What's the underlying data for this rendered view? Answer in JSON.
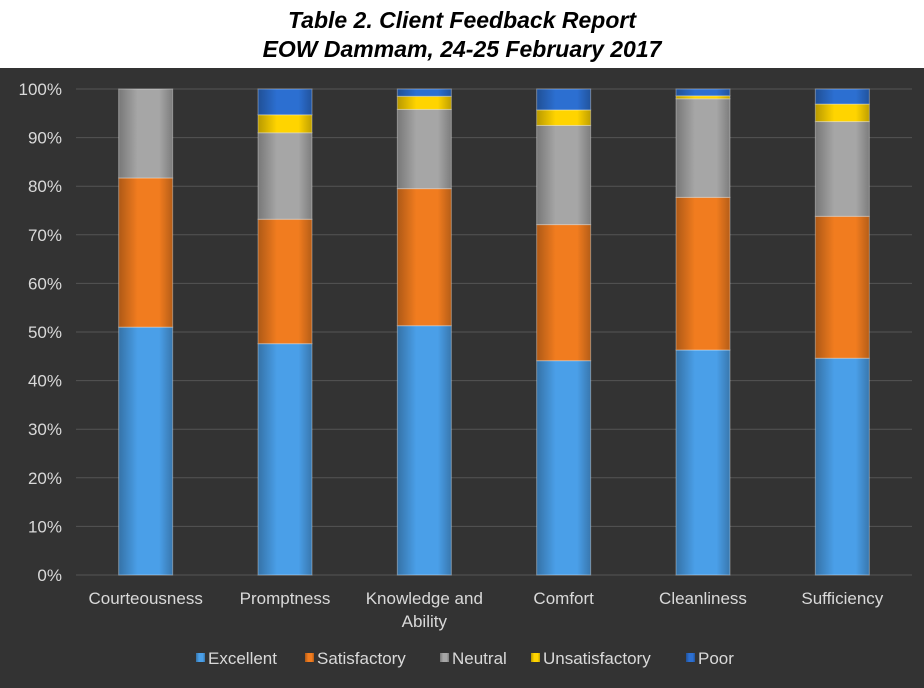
{
  "title_line1": "Table 2. Client Feedback Report",
  "title_line2": "EOW Dammam, 24-25 February 2017",
  "chart_data": {
    "type": "bar",
    "stacked": "percent",
    "title": "Table 2. Client Feedback Report EOW Dammam, 24-25 February 2017",
    "categories": [
      "Courteousness",
      "Promptness",
      "Knowledge and Ability",
      "Comfort",
      "Cleanliness",
      "Sufficiency"
    ],
    "category_lines": [
      [
        "Courteousness"
      ],
      [
        "Promptness"
      ],
      [
        "Knowledge and",
        "Ability"
      ],
      [
        "Comfort"
      ],
      [
        "Cleanliness"
      ],
      [
        "Sufficiency"
      ]
    ],
    "yticks": [
      "0%",
      "10%",
      "20%",
      "30%",
      "40%",
      "50%",
      "60%",
      "70%",
      "80%",
      "90%",
      "100%"
    ],
    "ylim": [
      0,
      100
    ],
    "grid": true,
    "legend_position": "bottom",
    "series": [
      {
        "name": "Excellent",
        "color": "#4a9fe8",
        "values": [
          51,
          47.6,
          51.3,
          44.1,
          46.3,
          44.6
        ]
      },
      {
        "name": "Satisfactory",
        "color": "#f17c1f",
        "values": [
          30.7,
          25.6,
          28.2,
          28,
          31.4,
          29.2
        ]
      },
      {
        "name": "Neutral",
        "color": "#a6a6a6",
        "values": [
          18.3,
          17.8,
          16.3,
          20.4,
          20.3,
          19.5
        ]
      },
      {
        "name": "Unsatisfactory",
        "color": "#ffd400",
        "values": [
          0,
          3.7,
          2.7,
          3.2,
          0.6,
          3.6
        ]
      },
      {
        "name": "Poor",
        "color": "#2c6fd1",
        "values": [
          0,
          5.3,
          1.5,
          4.3,
          1.4,
          3.1
        ]
      }
    ]
  }
}
